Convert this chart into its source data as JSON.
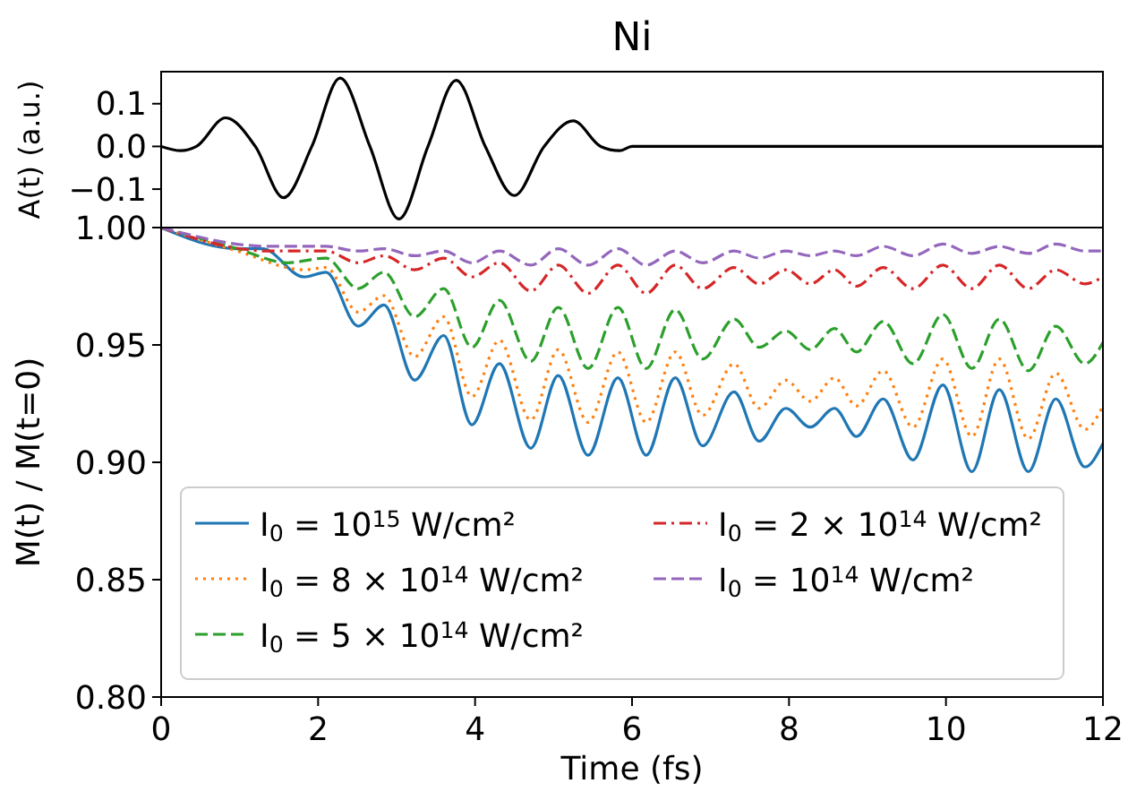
{
  "chart_data": [
    {
      "type": "line",
      "title": "Ni",
      "ylabel": "A(t) (a.u.)",
      "xlim": [
        0,
        12
      ],
      "ylim": [
        -0.19,
        0.175
      ],
      "yticks": [
        {
          "value": -0.1,
          "label": "−0.1"
        },
        {
          "value": 0,
          "label": "0.0"
        },
        {
          "value": 0.1,
          "label": "0.1"
        }
      ],
      "tick_labels": "y",
      "grid": false,
      "legend": false,
      "series": [
        {
          "color": "#000000",
          "line_style": "solid",
          "x": [
            0,
            0.25,
            0.45,
            0.82,
            1.2,
            1.56,
            1.92,
            2.28,
            2.66,
            3.03,
            3.4,
            3.76,
            4.13,
            4.5,
            4.88,
            5.25,
            5.6,
            5.84,
            6.0,
            12
          ],
          "values": [
            0,
            -0.01,
            0,
            0.067,
            0,
            -0.12,
            0,
            0.16,
            0,
            -0.17,
            0,
            0.155,
            0,
            -0.115,
            0,
            0.06,
            0,
            -0.01,
            0,
            0
          ]
        }
      ]
    },
    {
      "type": "line",
      "xlabel": "Time (fs)",
      "ylabel": "M(t) / M(t=0)",
      "xlim": [
        0,
        12
      ],
      "ylim": [
        0.8,
        1.0
      ],
      "xticks": [
        0,
        2,
        4,
        6,
        8,
        10,
        12
      ],
      "yticks": [
        {
          "value": 0.8,
          "label": "0.80"
        },
        {
          "value": 0.85,
          "label": "0.85"
        },
        {
          "value": 0.9,
          "label": "0.90"
        },
        {
          "value": 0.95,
          "label": "0.95"
        },
        {
          "value": 1.0,
          "label": "1.00"
        }
      ],
      "grid": false,
      "legend": "bottom left",
      "series": [
        {
          "name": "I$_{0}$ = 10$^{15}$ W/cm²",
          "color": "#1f77b4",
          "line_style": "solid",
          "x": [
            0,
            0.97,
            1.29,
            1.82,
            2.1,
            2.51,
            2.84,
            3.23,
            3.6,
            3.96,
            4.31,
            4.71,
            5.06,
            5.44,
            5.82,
            6.18,
            6.55,
            6.9,
            7.3,
            7.62,
            7.96,
            8.27,
            8.58,
            8.86,
            9.2,
            9.58,
            9.96,
            10.33,
            10.68,
            11.05,
            11.4,
            11.77,
            12
          ],
          "values": [
            1.0,
            0.991,
            0.991,
            0.979,
            0.981,
            0.958,
            0.967,
            0.935,
            0.954,
            0.916,
            0.942,
            0.906,
            0.937,
            0.903,
            0.936,
            0.903,
            0.936,
            0.907,
            0.93,
            0.909,
            0.923,
            0.915,
            0.923,
            0.911,
            0.927,
            0.901,
            0.933,
            0.896,
            0.931,
            0.896,
            0.927,
            0.898,
            0.908
          ]
        },
        {
          "name": "I$_{0}$ = 8 × 10$^{14}$ W/cm²",
          "color": "#ff7f0e",
          "line_style": "dotted",
          "x": [
            0,
            0.97,
            1.82,
            2.1,
            2.51,
            2.84,
            3.23,
            3.6,
            3.96,
            4.31,
            4.71,
            5.06,
            5.44,
            5.82,
            6.18,
            6.55,
            6.9,
            7.3,
            7.62,
            7.96,
            8.27,
            8.58,
            8.86,
            9.2,
            9.58,
            9.96,
            10.33,
            10.68,
            11.05,
            11.4,
            11.77,
            12
          ],
          "values": [
            1.0,
            0.99,
            0.982,
            0.983,
            0.964,
            0.971,
            0.945,
            0.962,
            0.928,
            0.952,
            0.918,
            0.948,
            0.917,
            0.947,
            0.917,
            0.947,
            0.92,
            0.942,
            0.923,
            0.935,
            0.926,
            0.936,
            0.924,
            0.939,
            0.915,
            0.944,
            0.911,
            0.944,
            0.91,
            0.938,
            0.914,
            0.924
          ]
        },
        {
          "name": "I$_{0}$ = 5 × 10$^{14}$ W/cm²",
          "color": "#2ca02c",
          "line_style": "dashed",
          "x": [
            0,
            0.97,
            1.61,
            2.1,
            2.51,
            2.84,
            3.23,
            3.6,
            3.96,
            4.31,
            4.71,
            5.06,
            5.44,
            5.82,
            6.18,
            6.55,
            6.9,
            7.3,
            7.62,
            7.96,
            8.27,
            8.58,
            8.86,
            9.2,
            9.58,
            9.96,
            10.33,
            10.68,
            11.05,
            11.4,
            11.77,
            12
          ],
          "values": [
            1.0,
            0.991,
            0.985,
            0.987,
            0.974,
            0.981,
            0.962,
            0.974,
            0.949,
            0.969,
            0.943,
            0.966,
            0.94,
            0.966,
            0.94,
            0.965,
            0.944,
            0.961,
            0.949,
            0.956,
            0.948,
            0.957,
            0.947,
            0.96,
            0.942,
            0.963,
            0.94,
            0.961,
            0.939,
            0.958,
            0.942,
            0.951
          ]
        },
        {
          "name": "I$_{0}$ = 2 × 10$^{14}$ W/cm²",
          "color": "#d62728",
          "line_style": "dashdot",
          "x": [
            0,
            1.37,
            2.1,
            2.51,
            2.84,
            3.23,
            3.6,
            3.96,
            4.31,
            4.71,
            5.06,
            5.44,
            5.82,
            6.18,
            6.55,
            6.9,
            7.3,
            7.62,
            7.96,
            8.27,
            8.58,
            8.86,
            9.2,
            9.58,
            9.96,
            10.33,
            10.68,
            11.05,
            11.4,
            11.77,
            12
          ],
          "values": [
            1.0,
            0.99,
            0.99,
            0.985,
            0.988,
            0.982,
            0.987,
            0.979,
            0.985,
            0.973,
            0.984,
            0.972,
            0.984,
            0.972,
            0.984,
            0.974,
            0.983,
            0.976,
            0.982,
            0.976,
            0.982,
            0.975,
            0.983,
            0.974,
            0.984,
            0.974,
            0.984,
            0.974,
            0.982,
            0.976,
            0.979
          ]
        },
        {
          "name": "I$_{0}$ = 10$^{14}$ W/cm²",
          "color": "#9467bd",
          "line_style": "dashed",
          "x": [
            0,
            1.37,
            2.1,
            2.51,
            2.84,
            3.23,
            3.6,
            3.96,
            4.31,
            4.71,
            5.06,
            5.44,
            5.82,
            6.18,
            6.55,
            6.9,
            7.3,
            7.62,
            7.96,
            8.27,
            8.58,
            8.86,
            9.2,
            9.58,
            9.96,
            10.33,
            10.68,
            11.05,
            11.4,
            11.77,
            12
          ],
          "values": [
            1.0,
            0.992,
            0.992,
            0.99,
            0.991,
            0.988,
            0.99,
            0.985,
            0.99,
            0.984,
            0.991,
            0.984,
            0.991,
            0.984,
            0.99,
            0.985,
            0.99,
            0.987,
            0.99,
            0.988,
            0.99,
            0.988,
            0.992,
            0.988,
            0.993,
            0.989,
            0.992,
            0.989,
            0.993,
            0.99,
            0.99
          ]
        }
      ]
    }
  ]
}
